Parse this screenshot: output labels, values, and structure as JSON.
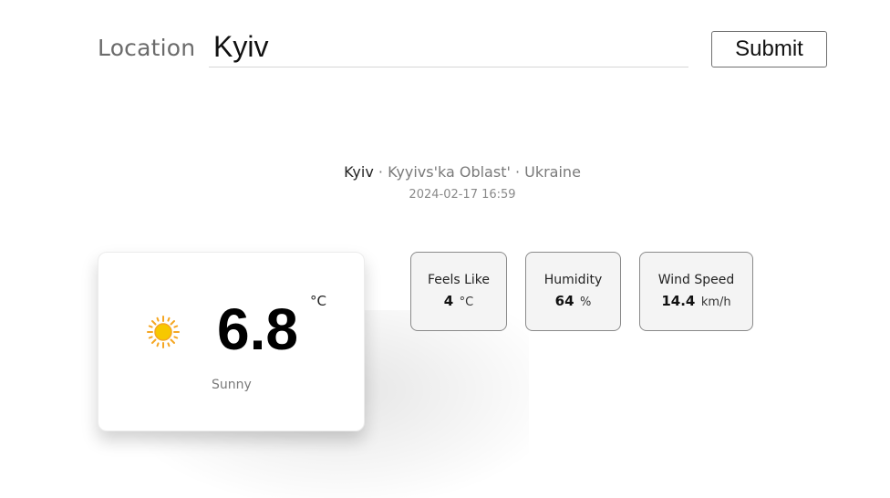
{
  "search": {
    "label": "Location",
    "value": "Kyiv",
    "submit_label": "Submit"
  },
  "place": {
    "city": "Kyiv",
    "separator": " · ",
    "region": "Kyyivs'ka Oblast'",
    "country": "Ukraine",
    "datetime": "2024-02-17 16:59"
  },
  "current": {
    "icon": "sun-icon",
    "temperature": "6.8",
    "unit": "°C",
    "condition": "Sunny"
  },
  "stats": {
    "feels_like": {
      "label": "Feels Like",
      "value": "4",
      "unit": "°C"
    },
    "humidity": {
      "label": "Humidity",
      "value": "64",
      "unit": "%"
    },
    "wind_speed": {
      "label": "Wind Speed",
      "value": "14.4",
      "unit": "km/h"
    }
  },
  "colors": {
    "sun_fill": "#f7c800",
    "sun_ray": "#f5a623",
    "card_border": "#8a8a8a"
  }
}
